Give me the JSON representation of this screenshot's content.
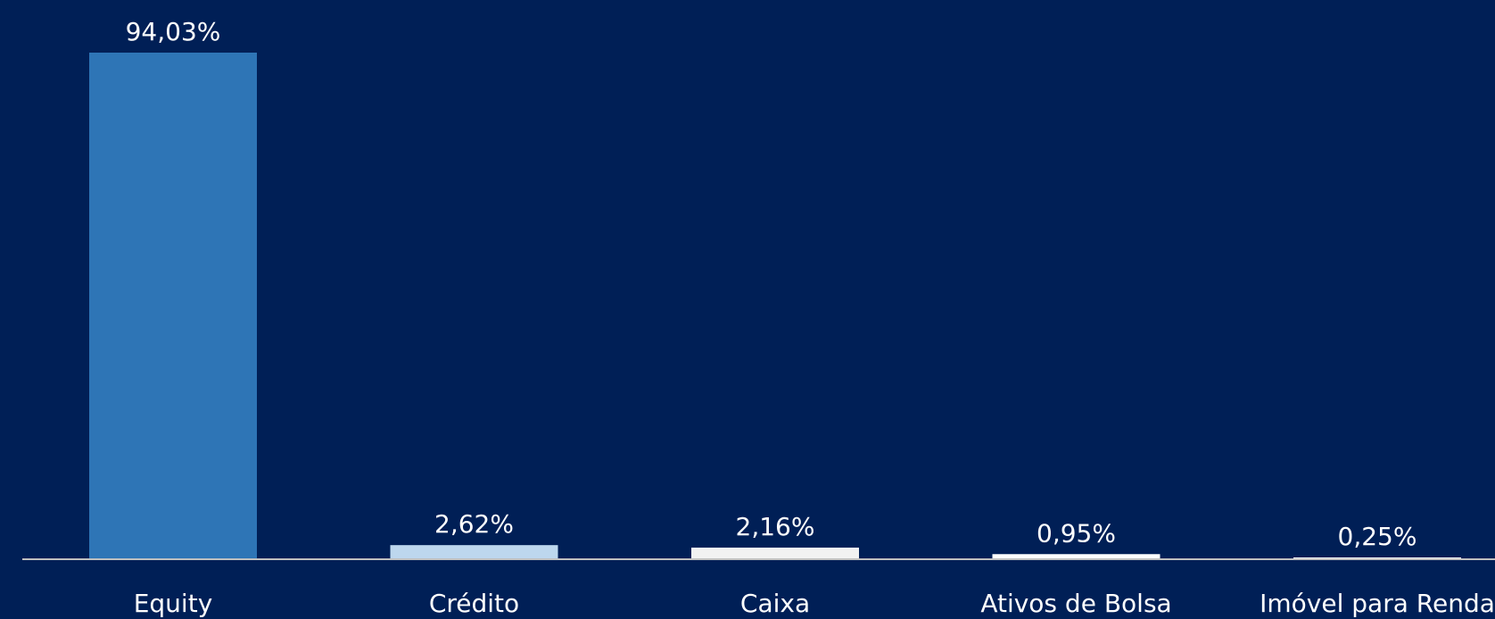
{
  "chart_data": {
    "type": "bar",
    "categories": [
      "Equity",
      "Crédito",
      "Caixa",
      "Ativos de Bolsa",
      "Imóvel para Renda"
    ],
    "values": [
      94.03,
      2.62,
      2.16,
      0.95,
      0.25
    ],
    "data_labels": [
      "94,03%",
      "2,62%",
      "2,16%",
      "0,95%",
      "0,25%"
    ],
    "bar_colors": [
      "#2e75b6",
      "#bdd7ee",
      "#f2f2f2",
      "#ffffff",
      "#ffffff"
    ],
    "background_color": "#001f56",
    "axis_color": "#bfbfbf",
    "text_color": "#ffffff",
    "ylim": [
      0,
      100
    ],
    "grid": false,
    "legend": "none",
    "title": "",
    "xlabel": "",
    "ylabel": ""
  }
}
